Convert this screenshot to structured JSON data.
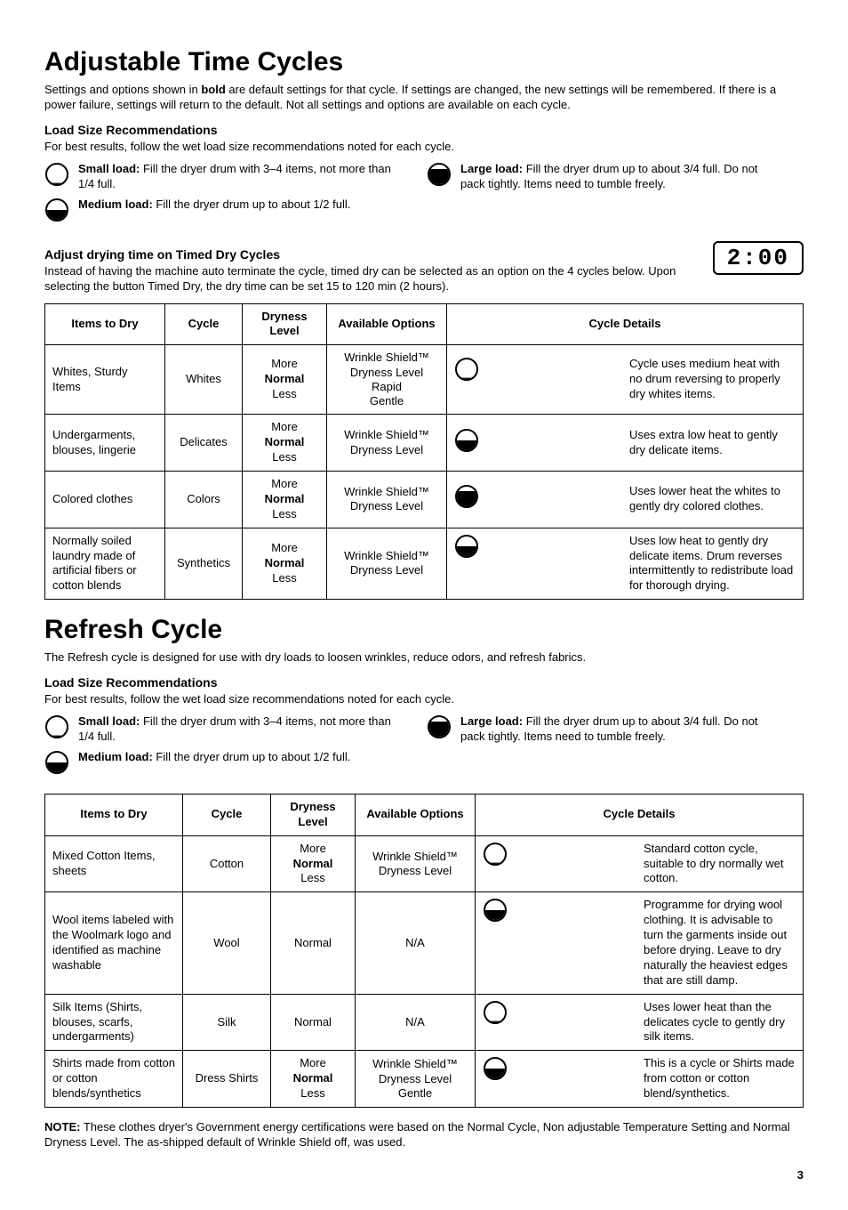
{
  "section1": {
    "title": "Adjustable Time Cycles",
    "intro_pre": "Settings and options shown in ",
    "intro_bold": "bold",
    "intro_post": " are default settings for that cycle. If settings are changed, the new settings will be remembered. If there is a power failure, settings will return to the default. Not all settings and options are available on each cycle.",
    "load_head": "Load Size Recommendations",
    "load_text": "For best results, follow the wet load size recommendations noted for each cycle.",
    "loads": {
      "small": {
        "label": "Small load:",
        "text": " Fill the dryer drum with 3–4 items, not more than 1/4 full.",
        "fill": 0.1
      },
      "large": {
        "label": "Large load:",
        "text": " Fill the dryer drum up to about 3/4 full. Do not pack tightly. Items need to tumble freely.",
        "fill": 0.75
      },
      "medium": {
        "label": "Medium load:",
        "text": " Fill the dryer drum up to about 1/2 full.",
        "fill": 0.5
      }
    },
    "timed_head": "Adjust drying time on Timed Dry Cycles",
    "timed_text": "Instead of having the machine auto terminate the cycle, timed dry can be selected as an option on the 4 cycles below. Upon selecting the button Timed Dry, the dry time can be set 15 to 120 min (2 hours).",
    "timer": "2:00"
  },
  "table1": {
    "headers": [
      "Items to Dry",
      "Cycle",
      "Dryness Level",
      "Available Options",
      "Cycle Details"
    ],
    "rows": [
      {
        "items": "Whites, Sturdy Items",
        "cycle": "Whites",
        "dry": "More\nNormal\nLess",
        "dry_bold_idx": 1,
        "opts": "Wrinkle Shield™\nDryness Level\nRapid\nGentle",
        "fill": 0.1,
        "details": "Cycle uses medium heat with no drum reversing to properly dry whites items."
      },
      {
        "items": "Undergarments, blouses, lingerie",
        "cycle": "Delicates",
        "dry": "More\nNormal\nLess",
        "dry_bold_idx": 1,
        "opts": "Wrinkle Shield™\nDryness Level",
        "fill": 0.5,
        "details": "Uses extra low heat to gently dry delicate items."
      },
      {
        "items": "Colored clothes",
        "cycle": "Colors",
        "dry": "More\nNormal\nLess",
        "dry_bold_idx": 1,
        "opts": "Wrinkle Shield™\nDryness Level",
        "fill": 0.75,
        "details": "Uses lower heat the whites to gently dry colored clothes."
      },
      {
        "items": "Normally soiled laundry made of artificial fibers or cotton blends",
        "cycle": "Synthetics",
        "dry": "More\nNormal\nLess",
        "dry_bold_idx": 1,
        "opts": "Wrinkle Shield™\nDryness Level",
        "fill": 0.5,
        "details": "Uses low heat to gently dry delicate items. Drum reverses intermittently to redistribute load for thorough drying."
      }
    ]
  },
  "section2": {
    "title": "Refresh Cycle",
    "intro": "The Refresh cycle is designed for use with dry loads to loosen wrinkles, reduce odors, and refresh fabrics.",
    "load_head": "Load Size Recommendations",
    "load_text": "For best results, follow the wet load size recommendations noted for each cycle.",
    "loads": {
      "small": {
        "label": "Small load:",
        "text": " Fill the dryer drum with 3–4 items, not more than 1/4 full.",
        "fill": 0.1
      },
      "large": {
        "label": "Large load:",
        "text": " Fill the dryer drum up to about 3/4 full. Do not pack tightly. Items need to tumble freely.",
        "fill": 0.75
      },
      "medium": {
        "label": "Medium load:",
        "text": " Fill the dryer drum up to about 1/2 full.",
        "fill": 0.5
      }
    }
  },
  "table2": {
    "headers": [
      "Items to Dry",
      "Cycle",
      "Dryness Level",
      "Available Options",
      "Cycle Details"
    ],
    "rows": [
      {
        "items": "Mixed Cotton Items, sheets",
        "cycle": "Cotton",
        "dry": "More\nNormal\nLess",
        "dry_bold_idx": 1,
        "opts": "Wrinkle Shield™\nDryness Level",
        "fill": 0.1,
        "details": "Standard cotton cycle, suitable to dry normally wet cotton."
      },
      {
        "items": "Wool items labeled with the Woolmark logo and identified as machine washable",
        "cycle": "Wool",
        "dry": "Normal",
        "dry_bold_idx": -1,
        "opts": "N/A",
        "fill": 0.5,
        "details": "Programme for drying wool clothing. It is advisable to turn the garments inside out before drying. Leave to dry naturally the heaviest edges that are still damp."
      },
      {
        "items": "Silk Items (Shirts, blouses, scarfs, undergarments)",
        "cycle": "Silk",
        "dry": "Normal",
        "dry_bold_idx": -1,
        "opts": "N/A",
        "fill": 0.1,
        "details": "Uses lower heat than the delicates cycle to gently dry silk items."
      },
      {
        "items": "Shirts made from cotton or cotton blends/synthetics",
        "cycle": "Dress Shirts",
        "dry": "More\nNormal\nLess",
        "dry_bold_idx": 1,
        "opts": "Wrinkle Shield™\nDryness Level\nGentle",
        "fill": 0.5,
        "details": "This is a cycle or Shirts made from cotton or cotton blend/synthetics."
      }
    ]
  },
  "note_label": "NOTE:",
  "note_text": " These clothes dryer's Government energy certifications were based on the Normal Cycle, Non adjustable Temperature Setting and Normal Dryness Level. The as-shipped default of Wrinkle Shield off, was used.",
  "page_number": "3",
  "colors": {
    "text": "#000000",
    "border": "#000000",
    "background": "#ffffff"
  }
}
